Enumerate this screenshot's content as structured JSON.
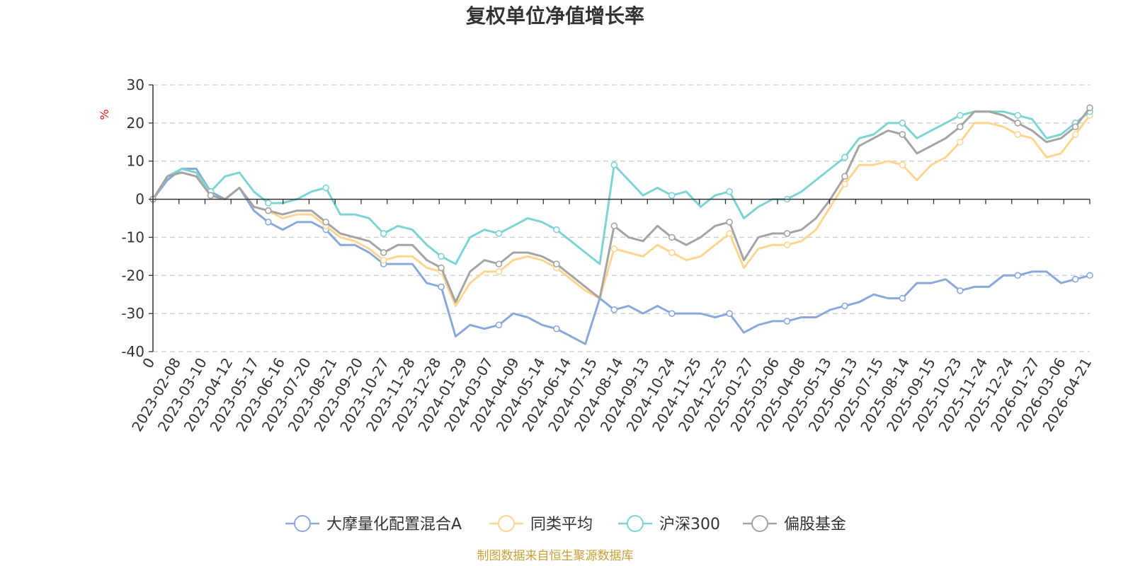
{
  "chart_data": {
    "type": "line",
    "title": "复权单位净值增长率",
    "ylabel": "%",
    "ylim": [
      -40,
      30
    ],
    "yticks": [
      30,
      20,
      10,
      0,
      -10,
      -20,
      -30,
      -40
    ],
    "grid": true,
    "legend_position": "bottom",
    "x_tick_labels": [
      "0",
      "2023-02-08",
      "2023-03-10",
      "2023-04-12",
      "2023-05-17",
      "2023-06-16",
      "2023-07-20",
      "2023-08-21",
      "2023-09-20",
      "2023-10-27",
      "2023-11-28",
      "2023-12-28",
      "2024-01-29",
      "2024-03-07",
      "2024-04-09",
      "2024-05-14",
      "2024-06-14",
      "2024-07-15",
      "2024-08-14",
      "2024-09-13",
      "2024-10-24",
      "2024-11-25",
      "2024-12-25",
      "2025-01-27",
      "2025-03-06",
      "2025-04-08",
      "2025-05-13",
      "2025-06-13",
      "2025-07-15",
      "2025-08-14",
      "2025-09-15",
      "2025-10-23",
      "2025-11-24",
      "2025-12-24",
      "2026-01-27",
      "2026-03-06",
      "2026-04-21"
    ],
    "series": [
      {
        "name": "大摩量化配置混合A",
        "color": "#8AA9DB",
        "values": [
          0,
          5,
          8,
          8,
          2,
          0,
          3,
          -3,
          -6,
          -8,
          -6,
          -6,
          -8,
          -12,
          -12,
          -14,
          -17,
          -17,
          -17,
          -22,
          -23,
          -36,
          -33,
          -34,
          -33,
          -30,
          -31,
          -33,
          -34,
          -36,
          -38,
          -26,
          -29,
          -28,
          -30,
          -28,
          -30,
          -30,
          -30,
          -31,
          -30,
          -35,
          -33,
          -32,
          -32,
          -31,
          -31,
          -29,
          -28,
          -27,
          -25,
          -26,
          -26,
          -22,
          -22,
          -21,
          -24,
          -23,
          -23,
          -20,
          -20,
          -19,
          -19,
          -22,
          -21,
          -20
        ]
      },
      {
        "name": "同类平均",
        "color": "#FFD591",
        "values": [
          0,
          6,
          8,
          7,
          1,
          0,
          3,
          -2,
          -3,
          -5,
          -4,
          -4,
          -7,
          -10,
          -11,
          -13,
          -16,
          -15,
          -15,
          -18,
          -19,
          -28,
          -22,
          -19,
          -19,
          -16,
          -15,
          -16,
          -18,
          -21,
          -24,
          -26,
          -13,
          -14,
          -15,
          -12,
          -14,
          -16,
          -15,
          -12,
          -9,
          -18,
          -13,
          -12,
          -12,
          -11,
          -8,
          -2,
          4,
          9,
          9,
          10,
          9,
          5,
          9,
          11,
          15,
          20,
          20,
          19,
          17,
          16,
          11,
          12,
          17,
          22
        ]
      },
      {
        "name": "沪深300",
        "color": "#7ED3D3",
        "values": [
          0,
          6,
          8,
          7,
          2,
          6,
          7,
          2,
          -1,
          -1,
          0,
          2,
          3,
          -4,
          -4,
          -5,
          -9,
          -7,
          -8,
          -12,
          -15,
          -17,
          -10,
          -8,
          -9,
          -7,
          -5,
          -6,
          -8,
          -11,
          -14,
          -17,
          9,
          5,
          1,
          3,
          1,
          2,
          -2,
          1,
          2,
          -5,
          -2,
          0,
          0,
          2,
          5,
          8,
          11,
          16,
          17,
          20,
          20,
          16,
          18,
          20,
          22,
          23,
          23,
          23,
          22,
          21,
          16,
          17,
          20,
          23
        ]
      },
      {
        "name": "偏股基金",
        "color": "#A4A4A4",
        "values": [
          0,
          6,
          7,
          6,
          1,
          0,
          3,
          -2,
          -3,
          -4,
          -3,
          -3,
          -6,
          -9,
          -10,
          -11,
          -14,
          -12,
          -12,
          -16,
          -18,
          -27,
          -19,
          -16,
          -17,
          -14,
          -14,
          -15,
          -17,
          -20,
          -23,
          -26,
          -7,
          -10,
          -11,
          -7,
          -10,
          -12,
          -10,
          -7,
          -6,
          -16,
          -10,
          -9,
          -9,
          -8,
          -5,
          0,
          6,
          14,
          16,
          18,
          17,
          12,
          14,
          16,
          19,
          23,
          23,
          22,
          20,
          18,
          15,
          16,
          19,
          24
        ]
      }
    ]
  },
  "source_note": "制图数据来自恒生聚源数据库",
  "colors": {
    "title": "#333333",
    "axis": "#333333",
    "grid": "#CCCCCC",
    "unit": "#E8141B",
    "source": "#C9A23A"
  }
}
